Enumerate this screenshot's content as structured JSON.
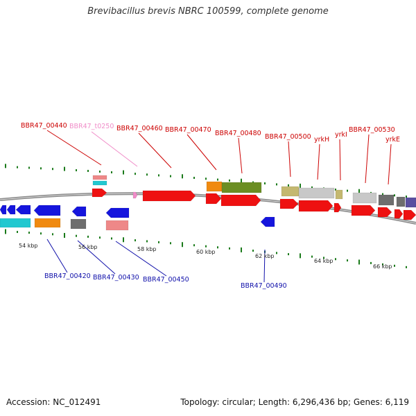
{
  "title": "Brevibacillus brevis NBRC 100599, complete genome",
  "footer": {
    "accession": "Accession: NC_012491",
    "summary": "Topology: circular; Length: 6,296,436 bp; Genes: 6,119"
  },
  "colors": {
    "backbone": "#8a8a8a",
    "tick": "#1a7a1a",
    "label_red": "#cc0000",
    "label_pink": "#f08cc8",
    "label_blue": "#1010aa",
    "gene_red": "#ee1111",
    "gene_blue": "#1515dd",
    "gene_cyan": "#22c8d0",
    "gene_orange": "#f08a10",
    "gene_olive": "#6b8e23",
    "gene_khaki": "#c4b870",
    "gene_lightgray": "#c8c8c8",
    "gene_darkgray": "#6e6e6e",
    "gene_pink": "#ee8888",
    "gene_purple": "#5a4fa0"
  },
  "ticks": [
    "54 kbp",
    "56 kbp",
    "58 kbp",
    "60 kbp",
    "62 kbp",
    "64 kbp",
    "66 kbp"
  ],
  "upper_labels": [
    "BBR47_00440",
    "BBR47_t0250",
    "BBR47_00460",
    "BBR47_00470",
    "BBR47_00480",
    "BBR47_00500",
    "yrkH",
    "yrkI",
    "BBR47_00530",
    "yrkE"
  ],
  "lower_labels": [
    "BBR47_00420",
    "BBR47_00430",
    "BBR47_00450",
    "BBR47_00490"
  ]
}
